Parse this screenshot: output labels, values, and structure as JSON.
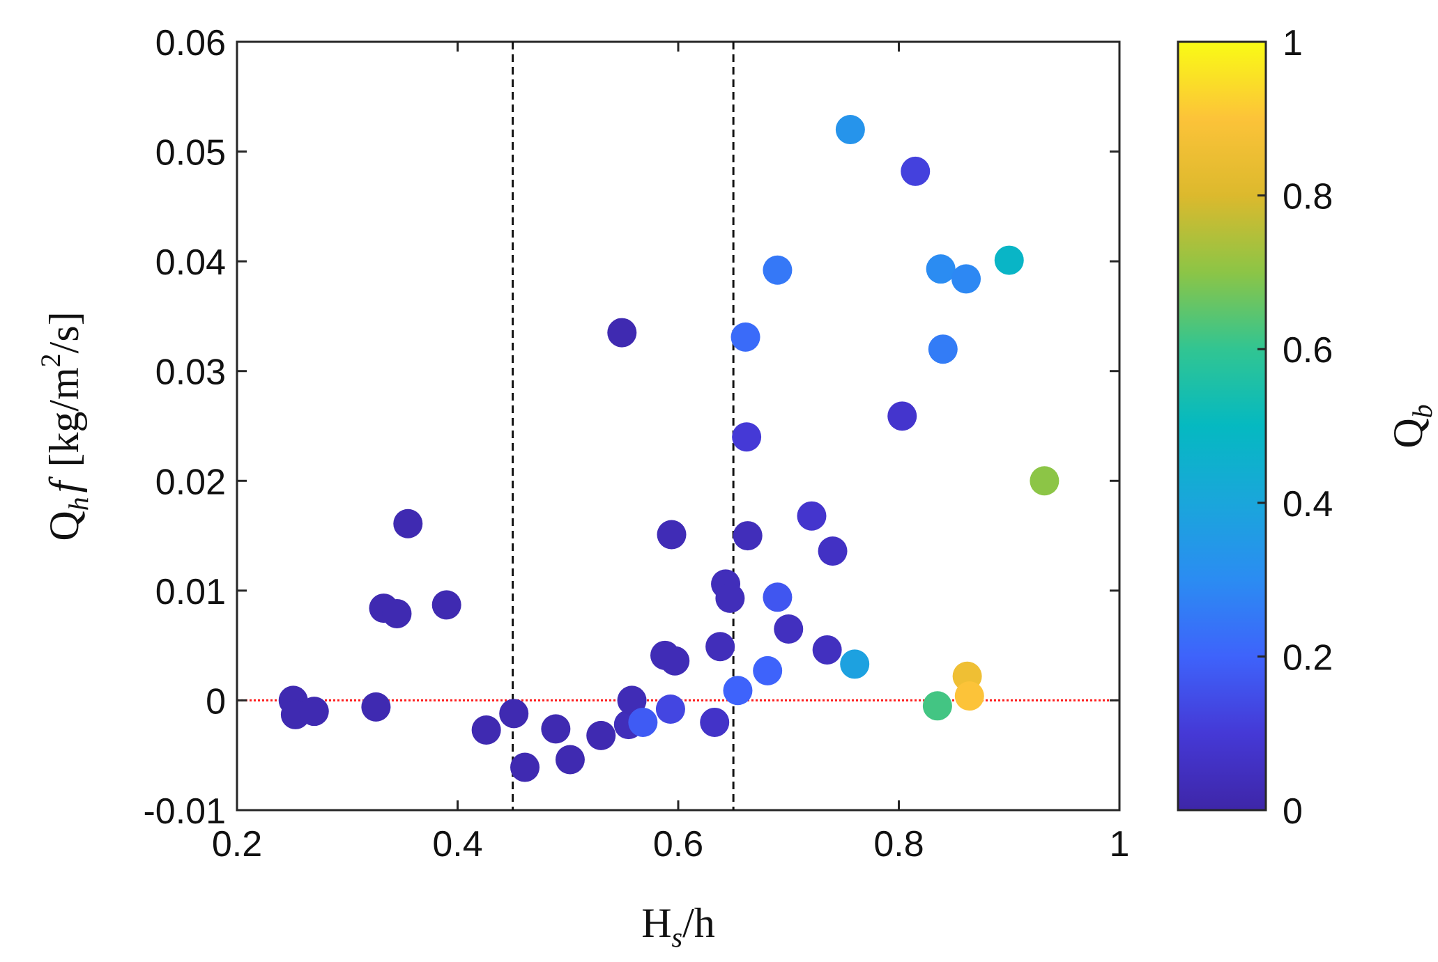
{
  "chart_data": {
    "type": "scatter",
    "title": "",
    "xlabel": {
      "main": "H",
      "sub": "s",
      "rest": "/h"
    },
    "ylabel": {
      "main": "Q",
      "sub": "h",
      "f": "f",
      "unit_a": "[kg/m",
      "sup": "2",
      "unit_b": "/s]"
    },
    "xlim": [
      0.2,
      1
    ],
    "ylim": [
      -0.01,
      0.06
    ],
    "xticks": [
      "0.2",
      "0.4",
      "0.6",
      "0.8",
      "1"
    ],
    "yticks": [
      "-0.01",
      "0",
      "0.01",
      "0.02",
      "0.03",
      "0.04",
      "0.05",
      "0.06"
    ],
    "grid": false,
    "vertical_reference_lines": [
      0.45,
      0.65
    ],
    "horizontal_reference_line": 0,
    "colorbar": {
      "label": {
        "main": "Q",
        "sub": "b"
      },
      "range": [
        0,
        1
      ],
      "ticks": [
        "0",
        "0.2",
        "0.4",
        "0.6",
        "0.8",
        "1"
      ],
      "colormap": "parula"
    },
    "points": [
      {
        "x": 0.251,
        "y": 0.0,
        "c": 0.02
      },
      {
        "x": 0.253,
        "y": -0.0013,
        "c": 0.02
      },
      {
        "x": 0.27,
        "y": -0.001,
        "c": 0.02
      },
      {
        "x": 0.326,
        "y": -0.0006,
        "c": 0.02
      },
      {
        "x": 0.333,
        "y": 0.0084,
        "c": 0.02
      },
      {
        "x": 0.345,
        "y": 0.0079,
        "c": 0.02
      },
      {
        "x": 0.355,
        "y": 0.0161,
        "c": 0.02
      },
      {
        "x": 0.39,
        "y": 0.0087,
        "c": 0.02
      },
      {
        "x": 0.426,
        "y": -0.0027,
        "c": 0.02
      },
      {
        "x": 0.451,
        "y": -0.0012,
        "c": 0.02
      },
      {
        "x": 0.461,
        "y": -0.0061,
        "c": 0.02
      },
      {
        "x": 0.489,
        "y": -0.0026,
        "c": 0.02
      },
      {
        "x": 0.502,
        "y": -0.0054,
        "c": 0.02
      },
      {
        "x": 0.53,
        "y": -0.0032,
        "c": 0.02
      },
      {
        "x": 0.549,
        "y": 0.0335,
        "c": 0.02
      },
      {
        "x": 0.555,
        "y": -0.0022,
        "c": 0.04
      },
      {
        "x": 0.558,
        "y": 0.0,
        "c": 0.03
      },
      {
        "x": 0.568,
        "y": -0.002,
        "c": 0.18
      },
      {
        "x": 0.588,
        "y": 0.0041,
        "c": 0.03
      },
      {
        "x": 0.593,
        "y": -0.0008,
        "c": 0.13
      },
      {
        "x": 0.594,
        "y": 0.0151,
        "c": 0.03
      },
      {
        "x": 0.597,
        "y": 0.0036,
        "c": 0.03
      },
      {
        "x": 0.633,
        "y": -0.002,
        "c": 0.07
      },
      {
        "x": 0.638,
        "y": 0.0049,
        "c": 0.04
      },
      {
        "x": 0.643,
        "y": 0.0106,
        "c": 0.04
      },
      {
        "x": 0.647,
        "y": 0.0093,
        "c": 0.04
      },
      {
        "x": 0.654,
        "y": 0.0009,
        "c": 0.2
      },
      {
        "x": 0.661,
        "y": 0.0331,
        "c": 0.22
      },
      {
        "x": 0.662,
        "y": 0.024,
        "c": 0.1
      },
      {
        "x": 0.663,
        "y": 0.015,
        "c": 0.04
      },
      {
        "x": 0.681,
        "y": 0.0027,
        "c": 0.2
      },
      {
        "x": 0.69,
        "y": 0.0392,
        "c": 0.25
      },
      {
        "x": 0.69,
        "y": 0.0094,
        "c": 0.17
      },
      {
        "x": 0.7,
        "y": 0.0065,
        "c": 0.05
      },
      {
        "x": 0.721,
        "y": 0.0168,
        "c": 0.08
      },
      {
        "x": 0.735,
        "y": 0.0046,
        "c": 0.05
      },
      {
        "x": 0.74,
        "y": 0.0136,
        "c": 0.06
      },
      {
        "x": 0.756,
        "y": 0.052,
        "c": 0.33
      },
      {
        "x": 0.76,
        "y": 0.0033,
        "c": 0.38
      },
      {
        "x": 0.803,
        "y": 0.0259,
        "c": 0.08
      },
      {
        "x": 0.815,
        "y": 0.0482,
        "c": 0.12
      },
      {
        "x": 0.835,
        "y": -0.0005,
        "c": 0.62
      },
      {
        "x": 0.838,
        "y": 0.0393,
        "c": 0.3
      },
      {
        "x": 0.84,
        "y": 0.032,
        "c": 0.26
      },
      {
        "x": 0.861,
        "y": 0.0384,
        "c": 0.29
      },
      {
        "x": 0.862,
        "y": 0.0022,
        "c": 0.86
      },
      {
        "x": 0.864,
        "y": 0.0004,
        "c": 0.9
      },
      {
        "x": 0.9,
        "y": 0.0401,
        "c": 0.48
      },
      {
        "x": 0.932,
        "y": 0.02,
        "c": 0.7
      }
    ]
  }
}
